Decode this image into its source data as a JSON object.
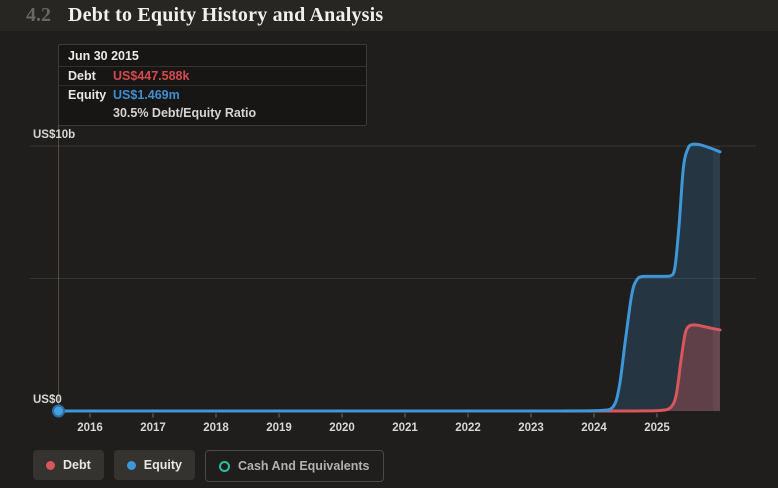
{
  "header": {
    "section_number": "4.2",
    "title": "Debt to Equity History and Analysis"
  },
  "tooltip": {
    "date": "Jun 30 2015",
    "rows": [
      {
        "label": "Debt",
        "value": "US$447.588k",
        "color": "#d4494e"
      },
      {
        "label": "Equity",
        "value": "US$1.469m",
        "color": "#3e8ed3"
      }
    ],
    "ratio": "30.5% Debt/Equity Ratio"
  },
  "legend": {
    "items": [
      {
        "label": "Debt",
        "marker": "dot",
        "color": "#d9565b"
      },
      {
        "label": "Equity",
        "marker": "dot",
        "color": "#3d97d8"
      },
      {
        "label": "Cash And Equivalents",
        "marker": "ring",
        "color": "#2fbf9f"
      }
    ]
  },
  "colors": {
    "background": "#201e1c",
    "header_band": "#282623",
    "debt": "#d9565b",
    "equity": "#3d97d8",
    "cash": "#2fbf9f",
    "gridline": "rgba(255,255,255,0.10)",
    "crosshair": "rgba(205,185,155,0.30)"
  },
  "chart_data": {
    "type": "area",
    "title": "Debt to Equity History and Analysis",
    "xlabel": "",
    "ylabel": "",
    "y_unit": "US$ billions",
    "x_ticks": [
      2016,
      2017,
      2018,
      2019,
      2020,
      2021,
      2022,
      2023,
      2024,
      2025
    ],
    "xlim": [
      2015.5,
      2026.05
    ],
    "ylim": [
      0,
      10.5
    ],
    "y_ticks": [
      {
        "value": 10,
        "label": "US$10b",
        "grid": true
      },
      {
        "value": 5,
        "label": "",
        "grid": true
      },
      {
        "value": 0,
        "label": "US$0",
        "grid": false
      }
    ],
    "hover_x": 2015.5,
    "hover_point_series": "Equity",
    "legend_position": "bottom-left",
    "series": [
      {
        "name": "Debt",
        "color": "#d9565b",
        "fill": "rgba(217,86,91,0.32)",
        "points": [
          [
            2015.5,
            0.00045
          ],
          [
            2016,
            0.0005
          ],
          [
            2018,
            0.0005
          ],
          [
            2020,
            0.0005
          ],
          [
            2022,
            0.0005
          ],
          [
            2024,
            0.0005
          ],
          [
            2024.8,
            0.003
          ],
          [
            2025.05,
            0.02
          ],
          [
            2025.2,
            0.1
          ],
          [
            2025.3,
            0.55
          ],
          [
            2025.38,
            1.9
          ],
          [
            2025.45,
            2.95
          ],
          [
            2025.52,
            3.22
          ],
          [
            2025.6,
            3.25
          ],
          [
            2025.72,
            3.2
          ],
          [
            2025.85,
            3.13
          ],
          [
            2026,
            3.06
          ]
        ]
      },
      {
        "name": "Equity",
        "color": "#3d97d8",
        "fill": "rgba(56,130,190,0.24)",
        "points": [
          [
            2015.5,
            0.0015
          ],
          [
            2016,
            0.002
          ],
          [
            2018,
            0.002
          ],
          [
            2020,
            0.002
          ],
          [
            2022,
            0.002
          ],
          [
            2023.5,
            0.002
          ],
          [
            2024.1,
            0.02
          ],
          [
            2024.3,
            0.15
          ],
          [
            2024.4,
            0.9
          ],
          [
            2024.5,
            2.7
          ],
          [
            2024.6,
            4.4
          ],
          [
            2024.68,
            4.95
          ],
          [
            2024.78,
            5.08
          ],
          [
            2025,
            5.08
          ],
          [
            2025.2,
            5.09
          ],
          [
            2025.28,
            5.35
          ],
          [
            2025.35,
            7.0
          ],
          [
            2025.42,
            9.2
          ],
          [
            2025.5,
            9.95
          ],
          [
            2025.58,
            10.07
          ],
          [
            2025.68,
            10.05
          ],
          [
            2025.85,
            9.92
          ],
          [
            2026,
            9.78
          ]
        ]
      }
    ]
  }
}
